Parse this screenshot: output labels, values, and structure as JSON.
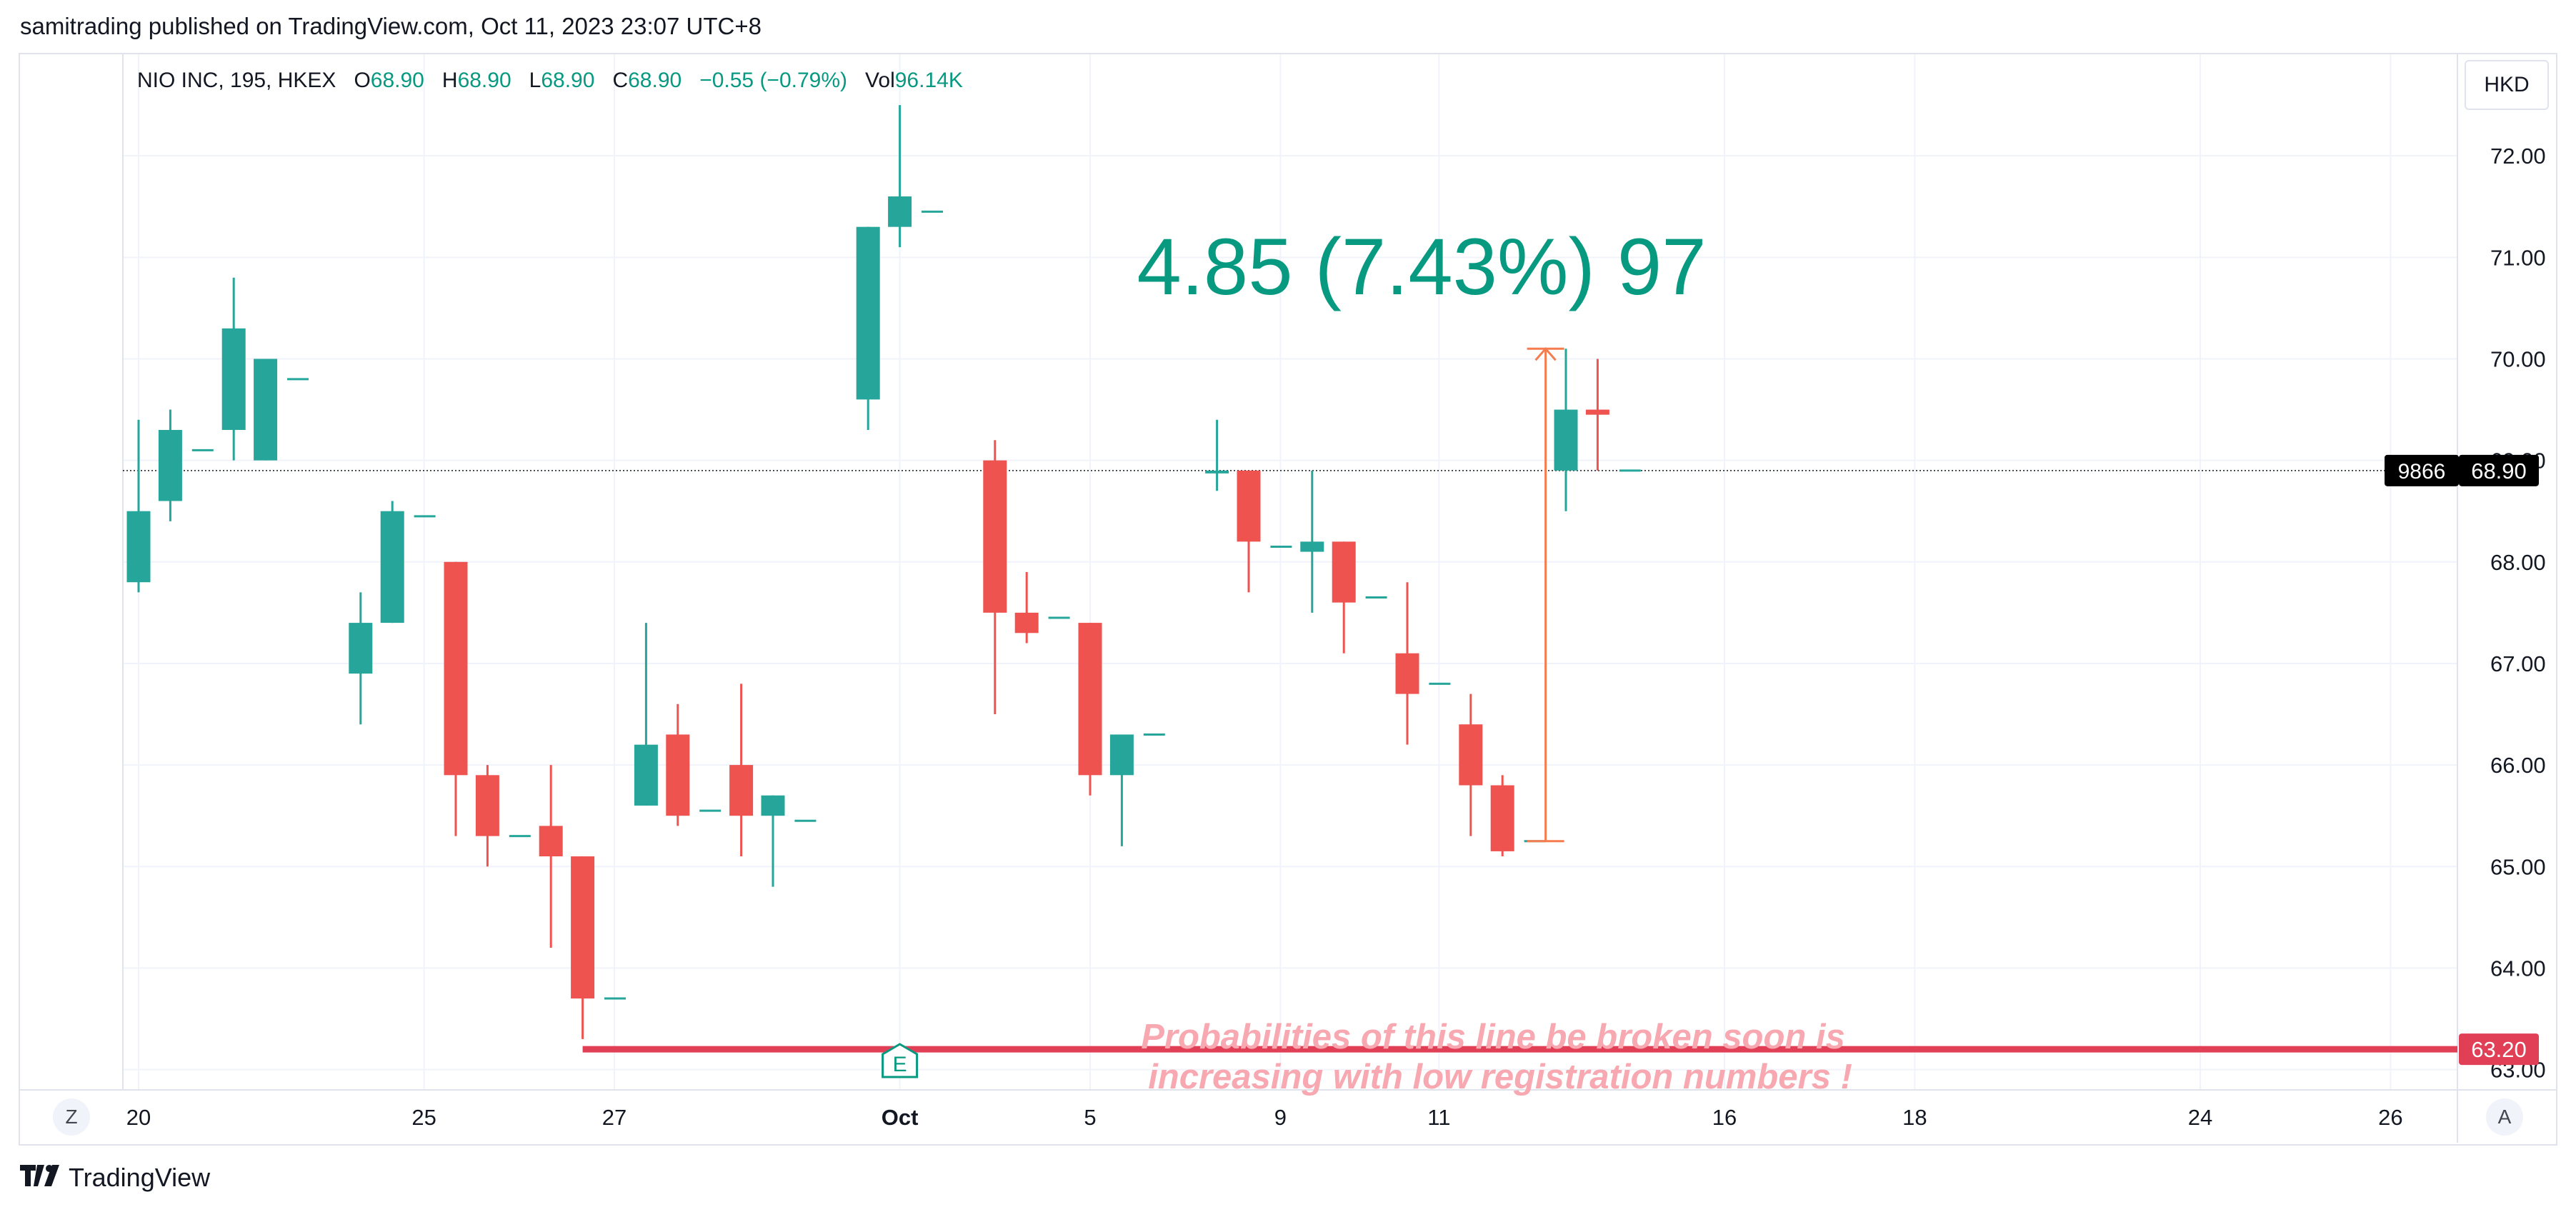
{
  "publisher_line": "samitrading published on TradingView.com, Oct 11, 2023 23:07 UTC+8",
  "legend": {
    "symbol": "NIO INC, 195, HKEX",
    "o_label": "O",
    "o_value": "68.90",
    "h_label": "H",
    "h_value": "68.90",
    "l_label": "L",
    "l_value": "68.90",
    "c_label": "C",
    "c_value": "68.90",
    "change": "−0.55 (−0.79%)",
    "vol_label": "Vol",
    "vol_value": "96.14K"
  },
  "currency_button": "HKD",
  "zoom_left": "Z",
  "auto_right": "A",
  "footer_brand": "TradingView",
  "colors": {
    "up": "#26a69a",
    "down": "#ef5350",
    "support": "#e03f55",
    "annotation": "#089981",
    "note": "#f7a8b1",
    "measure": "#f57c4f"
  },
  "chart_data": {
    "type": "candlestick",
    "y_axis": {
      "range": [
        62.8,
        73.0
      ],
      "ticks": [
        "72.00",
        "71.00",
        "70.00",
        "69.00",
        "68.00",
        "67.00",
        "66.00",
        "65.00",
        "64.00",
        "63.00"
      ]
    },
    "x_ticks": [
      {
        "label": "20",
        "index": 0
      },
      {
        "label": "25",
        "index": 9
      },
      {
        "label": "27",
        "index": 15
      },
      {
        "label": "Oct",
        "index": 24,
        "bold": true
      },
      {
        "label": "5",
        "index": 30
      },
      {
        "label": "9",
        "index": 36
      },
      {
        "label": "11",
        "index": 41
      },
      {
        "label": "16",
        "index": 50
      },
      {
        "label": "18",
        "index": 56
      },
      {
        "label": "24",
        "index": 65
      },
      {
        "label": "26",
        "index": 71
      }
    ],
    "candles": [
      {
        "o": 67.8,
        "h": 69.4,
        "l": 67.7,
        "c": 68.5
      },
      {
        "o": 68.6,
        "h": 69.5,
        "l": 68.4,
        "c": 69.3
      },
      {
        "o": 69.1,
        "h": 69.1,
        "l": 69.1,
        "c": 69.1
      },
      {
        "o": 69.3,
        "h": 70.8,
        "l": 69.0,
        "c": 70.3
      },
      {
        "o": 69.0,
        "h": 70.0,
        "l": 69.0,
        "c": 70.0
      },
      {
        "o": 69.8,
        "h": 69.8,
        "l": 69.8,
        "c": 69.8
      },
      null,
      {
        "o": 66.9,
        "h": 67.7,
        "l": 66.4,
        "c": 67.4
      },
      {
        "o": 67.4,
        "h": 68.6,
        "l": 67.4,
        "c": 68.5
      },
      {
        "o": 68.45,
        "h": 68.45,
        "l": 68.45,
        "c": 68.45
      },
      {
        "o": 68.0,
        "h": 68.0,
        "l": 65.3,
        "c": 65.9
      },
      {
        "o": 65.9,
        "h": 66.0,
        "l": 65.0,
        "c": 65.3
      },
      {
        "o": 65.3,
        "h": 65.3,
        "l": 65.3,
        "c": 65.3
      },
      {
        "o": 65.4,
        "h": 66.0,
        "l": 64.2,
        "c": 65.1
      },
      {
        "o": 65.1,
        "h": 65.1,
        "l": 63.3,
        "c": 63.7
      },
      {
        "o": 63.7,
        "h": 63.7,
        "l": 63.7,
        "c": 63.7
      },
      {
        "o": 65.6,
        "h": 67.4,
        "l": 65.6,
        "c": 66.2
      },
      {
        "o": 66.3,
        "h": 66.6,
        "l": 65.4,
        "c": 65.5
      },
      {
        "o": 65.55,
        "h": 65.55,
        "l": 65.55,
        "c": 65.55
      },
      {
        "o": 66.0,
        "h": 66.8,
        "l": 65.1,
        "c": 65.5
      },
      {
        "o": 65.5,
        "h": 65.7,
        "l": 64.8,
        "c": 65.7
      },
      {
        "o": 65.45,
        "h": 65.45,
        "l": 65.45,
        "c": 65.45
      },
      null,
      {
        "o": 69.6,
        "h": 71.3,
        "l": 69.3,
        "c": 71.3
      },
      {
        "o": 71.3,
        "h": 72.5,
        "l": 71.1,
        "c": 71.6
      },
      {
        "o": 71.45,
        "h": 71.45,
        "l": 71.45,
        "c": 71.45
      },
      null,
      {
        "o": 69.0,
        "h": 69.2,
        "l": 66.5,
        "c": 67.5
      },
      {
        "o": 67.5,
        "h": 67.9,
        "l": 67.2,
        "c": 67.3
      },
      {
        "o": 67.45,
        "h": 67.45,
        "l": 67.45,
        "c": 67.45
      },
      {
        "o": 67.4,
        "h": 67.4,
        "l": 65.7,
        "c": 65.9
      },
      {
        "o": 65.9,
        "h": 66.3,
        "l": 65.2,
        "c": 66.3
      },
      {
        "o": 66.3,
        "h": 66.3,
        "l": 66.3,
        "c": 66.3
      },
      null,
      {
        "o": 68.9,
        "h": 69.4,
        "l": 68.7,
        "c": 68.9
      },
      {
        "o": 68.9,
        "h": 68.9,
        "l": 67.7,
        "c": 68.2
      },
      {
        "o": 68.15,
        "h": 68.15,
        "l": 68.15,
        "c": 68.15
      },
      {
        "o": 68.1,
        "h": 68.9,
        "l": 67.5,
        "c": 68.2
      },
      {
        "o": 68.2,
        "h": 68.2,
        "l": 67.1,
        "c": 67.6
      },
      {
        "o": 67.65,
        "h": 67.65,
        "l": 67.65,
        "c": 67.65
      },
      {
        "o": 67.1,
        "h": 67.8,
        "l": 66.2,
        "c": 66.7
      },
      {
        "o": 66.8,
        "h": 66.8,
        "l": 66.8,
        "c": 66.8
      },
      {
        "o": 66.4,
        "h": 66.7,
        "l": 65.3,
        "c": 65.8
      },
      {
        "o": 65.8,
        "h": 65.9,
        "l": 65.1,
        "c": 65.15
      },
      {
        "o": 65.25,
        "h": 65.25,
        "l": 65.25,
        "c": 65.25
      },
      {
        "o": 68.9,
        "h": 70.1,
        "l": 68.5,
        "c": 69.5
      },
      {
        "o": 69.5,
        "h": 70.0,
        "l": 68.9,
        "c": 69.45
      },
      {
        "o": 68.9,
        "h": 68.9,
        "l": 68.9,
        "c": 68.9
      }
    ],
    "last_price": {
      "value": 68.9,
      "label": "68.90",
      "countdown": "9866"
    },
    "support_line": {
      "value": 63.2,
      "label": "63.20",
      "from_index": 14
    },
    "measure": {
      "from": 65.25,
      "to": 70.1,
      "index": 44,
      "text": "4.85 (7.43%) 97"
    },
    "note": [
      "Probabilities of this line be broken soon is",
      "increasing with low registration numbers !"
    ],
    "event_marker": {
      "label": "E",
      "index": 24
    }
  }
}
